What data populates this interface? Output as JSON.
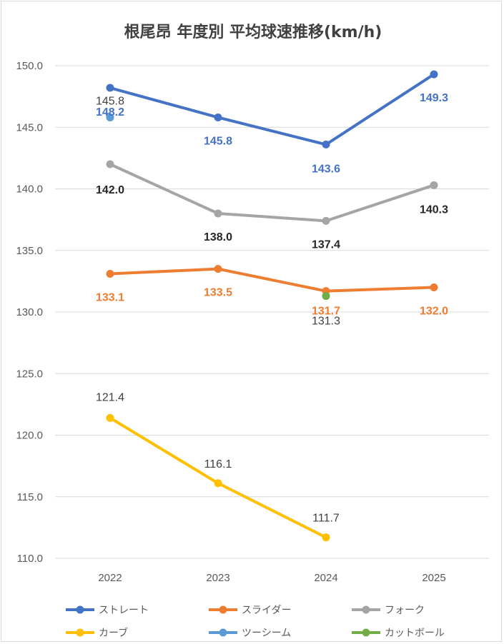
{
  "chart_data": {
    "type": "line",
    "title": "根尾昂 年度別 平均球速推移(km/h)",
    "categories": [
      "2022",
      "2023",
      "2024",
      "2025"
    ],
    "ylim": [
      110.0,
      150.0
    ],
    "yticks": [
      "110.0",
      "115.0",
      "120.0",
      "125.0",
      "130.0",
      "135.0",
      "140.0",
      "145.0",
      "150.0"
    ],
    "grid": true,
    "legend_position": "bottom",
    "series": [
      {
        "name": "ストレート",
        "color": "#4472c4",
        "values": [
          148.2,
          145.8,
          143.6,
          149.3
        ],
        "labels": [
          "148.2",
          "145.8",
          "143.6",
          "149.3"
        ],
        "label_color": "#4472c4"
      },
      {
        "name": "スライダー",
        "color": "#ed7d31",
        "values": [
          133.1,
          133.5,
          131.7,
          132.0
        ],
        "labels": [
          "133.1",
          "133.5",
          "131.7",
          "132.0"
        ],
        "label_color": "#ed7d31"
      },
      {
        "name": "フォーク",
        "color": "#a5a5a5",
        "values": [
          142.0,
          138.0,
          137.4,
          140.3
        ],
        "labels": [
          "142.0",
          "138.0",
          "137.4",
          "140.3"
        ],
        "label_color": "#262626"
      },
      {
        "name": "カーブ",
        "color": "#ffc000",
        "values": [
          121.4,
          116.1,
          111.7,
          null
        ],
        "labels": [
          "121.4",
          "116.1",
          "111.7",
          null
        ],
        "label_color": "#404040"
      },
      {
        "name": "ツーシーム",
        "color": "#5b9bd5",
        "values": [
          145.8,
          null,
          null,
          null
        ],
        "labels": [
          "145.8",
          null,
          null,
          null
        ],
        "label_color": "#404040"
      },
      {
        "name": "カットボール",
        "color": "#70ad47",
        "values": [
          null,
          null,
          131.3,
          null
        ],
        "labels": [
          null,
          null,
          "131.3",
          null
        ],
        "label_color": "#404040"
      }
    ]
  }
}
